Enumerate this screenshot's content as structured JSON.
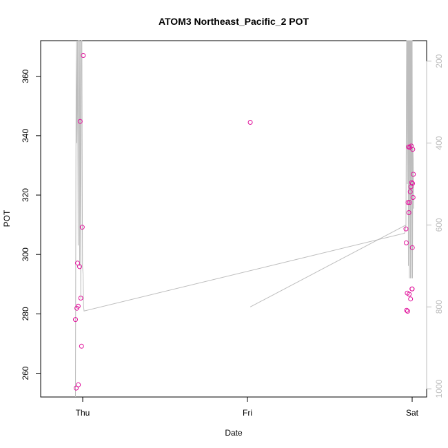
{
  "chart_data": {
    "type": "scatter",
    "title": "ATOM3 Northeast_Pacific_2 POT",
    "xlabel": "Date",
    "ylabel": "POT",
    "x_ticks": [
      "Thu",
      "Fri",
      "Sat"
    ],
    "y_ticks": [
      "260",
      "280",
      "300",
      "320",
      "340",
      "360"
    ],
    "ylim": [
      252,
      372
    ],
    "y2_ticks": [
      "200",
      "400",
      "600",
      "800",
      "1000"
    ],
    "y2lim": [
      1020,
      150
    ],
    "grid": false,
    "colors": {
      "points": "#e0109a",
      "line": "#bdbdbd",
      "axis": "#000000",
      "axis_right": "#bdbdbd"
    },
    "points": [
      {
        "x": "Wed 22:57",
        "y": 278.1
      },
      {
        "x": "Wed 23:03",
        "y": 255.0
      },
      {
        "x": "Wed 23:09",
        "y": 281.9
      },
      {
        "x": "Wed 23:15",
        "y": 297.1
      },
      {
        "x": "Wed 23:20",
        "y": 282.6
      },
      {
        "x": "Wed 23:22",
        "y": 256.1
      },
      {
        "x": "Wed 23:33",
        "y": 295.9
      },
      {
        "x": "Wed 23:38",
        "y": 344.8
      },
      {
        "x": "Wed 23:43",
        "y": 285.3
      },
      {
        "x": "Wed 23:50",
        "y": 269.1
      },
      {
        "x": "Wed 23:56",
        "y": 309.2
      },
      {
        "x": "Thu 00:05",
        "y": 367.0
      },
      {
        "x": "Fri 00:25",
        "y": 344.5
      },
      {
        "x": "Fri 23:06",
        "y": 308.6
      },
      {
        "x": "Fri 23:09",
        "y": 303.9
      },
      {
        "x": "Fri 23:12",
        "y": 281.2
      },
      {
        "x": "Fri 23:17",
        "y": 287.0
      },
      {
        "x": "Fri 23:20",
        "y": 280.9
      },
      {
        "x": "Fri 23:24",
        "y": 317.5
      },
      {
        "x": "Fri 23:28",
        "y": 336.2
      },
      {
        "x": "Fri 23:31",
        "y": 314.1
      },
      {
        "x": "Fri 23:34",
        "y": 286.6
      },
      {
        "x": "Fri 23:37",
        "y": 317.5
      },
      {
        "x": "Fri 23:40",
        "y": 336.1
      },
      {
        "x": "Fri 23:43",
        "y": 321.1
      },
      {
        "x": "Fri 23:46",
        "y": 285.0
      },
      {
        "x": "Fri 23:49",
        "y": 322.8
      },
      {
        "x": "Fri 23:53",
        "y": 336.5
      },
      {
        "x": "Fri 23:56",
        "y": 324.2
      },
      {
        "x": "Fri 23:58",
        "y": 288.4
      },
      {
        "x": "Sat 00:00",
        "y": 288.4
      },
      {
        "x": "Sat 00:01",
        "y": 302.3
      },
      {
        "x": "Sat 00:03",
        "y": 323.9
      },
      {
        "x": "Sat 00:05",
        "y": 335.4
      },
      {
        "x": "Sat 00:08",
        "y": 319.2
      },
      {
        "x": "Sat 00:10",
        "y": 327.0
      }
    ],
    "line_series": [
      {
        "x": [
          "Wed 22:57",
          "Wed 23:03",
          "Wed 23:09",
          "Wed 23:15",
          "Wed 23:20",
          "Wed 23:24",
          "Wed 23:30",
          "Wed 23:33",
          "Wed 23:38",
          "Wed 23:43",
          "Wed 23:48",
          "Wed 23:53",
          "Wed 23:58",
          "Thu 00:03",
          "Thu 00:08",
          "Thu 00:12",
          "Fri 22:55",
          "Fri 23:06"
        ],
        "y": [
          1020,
          150,
          400,
          150,
          650,
          150,
          150,
          700,
          150,
          780,
          150,
          150,
          700,
          720,
          800,
          810,
          620,
          600
        ]
      },
      {
        "x": [
          "Fri 00:25",
          "Fri 23:06",
          "Fri 23:12",
          "Fri 23:15",
          "Fri 23:18",
          "Fri 23:21",
          "Fri 23:24",
          "Fri 23:27",
          "Fri 23:30",
          "Fri 23:33",
          "Fri 23:36",
          "Fri 23:39",
          "Fri 23:42",
          "Fri 23:45",
          "Fri 23:48",
          "Fri 23:51",
          "Fri 23:54",
          "Fri 23:57",
          "Sat 00:00",
          "Sat 00:03",
          "Sat 00:06",
          "Sat 00:09",
          "Sat 00:12"
        ],
        "y": [
          800,
          600,
          150,
          150,
          500,
          150,
          150,
          700,
          150,
          150,
          730,
          150,
          150,
          730,
          150,
          150,
          730,
          150,
          150,
          730,
          410,
          440,
          560
        ]
      }
    ]
  }
}
